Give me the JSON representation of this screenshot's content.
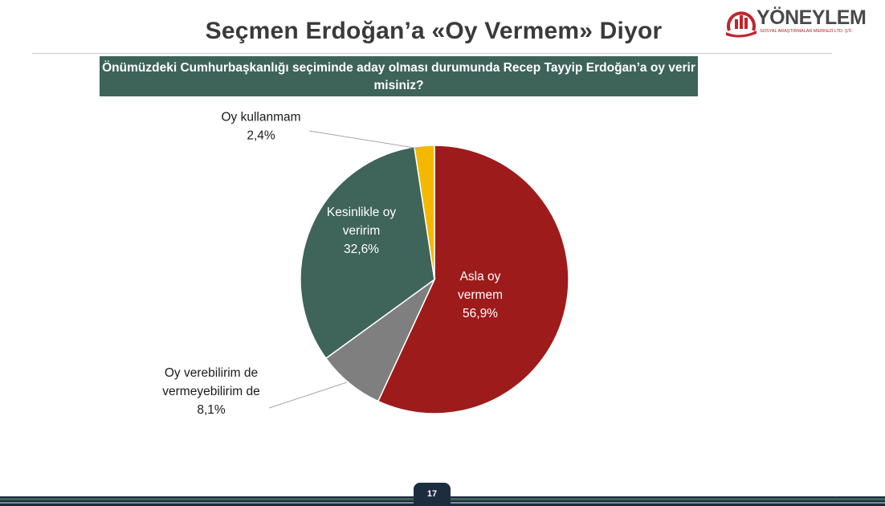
{
  "slide": {
    "title": "Seçmen Erdoğan’a «Oy Vermem» Diyor",
    "question": "Önümüzdeki Cumhurbaşkanlığı seçiminde aday olması durumunda Recep Tayyip Erdoğan’a oy verir misiniz?",
    "page_number": "17"
  },
  "logo": {
    "name": "YÖNEYLEM",
    "subtitle": "SOSYAL ARAŞTIRMALAR MERKEZİ LTD. ŞTİ."
  },
  "colors": {
    "header_green": "#3e6359",
    "asla": "#9e1b1b",
    "verebilirim": "#7f7f7f",
    "kesinlikle": "#3f6459",
    "kullanmam": "#f5b800",
    "footer_navy": "#1c2d3f"
  },
  "chart_data": {
    "type": "pie",
    "slices": [
      {
        "label_lines": [
          "Asla oy",
          "vermem"
        ],
        "value_text": "56,9%",
        "value": 56.9,
        "color": "#9e1b1b"
      },
      {
        "label_lines": [
          "Oy verebilirim de",
          "vermeyebilirim de"
        ],
        "value_text": "8,1%",
        "value": 8.1,
        "color": "#7f7f7f"
      },
      {
        "label_lines": [
          "Kesinlikle oy",
          "veririm"
        ],
        "value_text": "32,6%",
        "value": 32.6,
        "color": "#3f6459"
      },
      {
        "label_lines": [
          "Oy kullanmam"
        ],
        "value_text": "2,4%",
        "value": 2.4,
        "color": "#f5b800"
      }
    ]
  }
}
